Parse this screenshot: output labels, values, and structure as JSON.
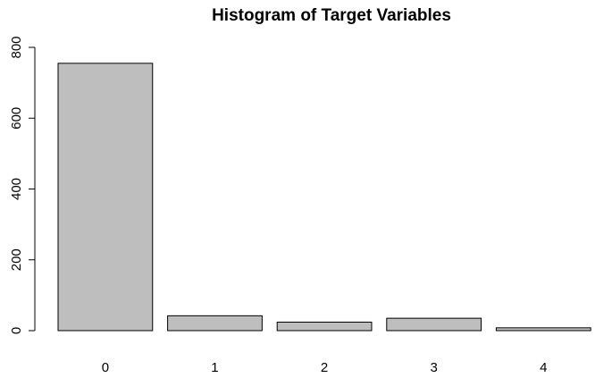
{
  "chart_data": {
    "type": "bar",
    "title": "Histogram of Target Variables",
    "xlabel": "",
    "ylabel": "",
    "categories": [
      "0",
      "1",
      "2",
      "3",
      "4"
    ],
    "values": [
      755,
      42,
      24,
      35,
      8
    ],
    "ylim": [
      0,
      800
    ],
    "yticks": [
      0,
      200,
      400,
      600,
      800
    ],
    "grid": false,
    "bar_color": "#bebebe",
    "border_color": "#000000"
  }
}
